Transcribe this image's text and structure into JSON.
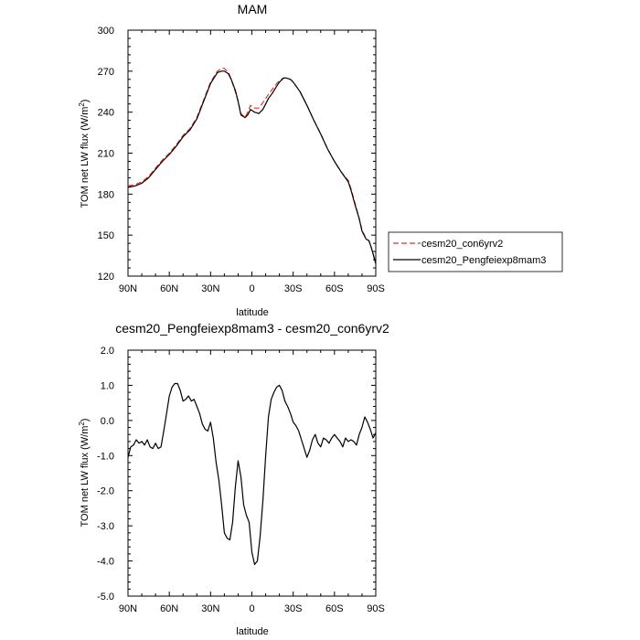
{
  "chart_data": [
    {
      "type": "line",
      "title": "MAM",
      "xlabel": "latitude",
      "ylabel": "TOM net LW flux (W/m",
      "ylabel_sup": "2",
      "ylabel_end": ")",
      "xlim": [
        90,
        -90
      ],
      "ylim": [
        120,
        300
      ],
      "xticks": [
        90,
        60,
        30,
        0,
        -30,
        -60,
        -90
      ],
      "xtick_labels": [
        "90N",
        "60N",
        "30N",
        "0",
        "30S",
        "60S",
        "90S"
      ],
      "yticks": [
        120,
        150,
        180,
        210,
        240,
        270,
        300
      ],
      "ytick_labels": [
        "120",
        "150",
        "180",
        "210",
        "240",
        "270",
        "300"
      ],
      "legend_position": "right-outside",
      "series": [
        {
          "name": "cesm20_con6yrv2",
          "color": "#e8302a",
          "dash": "dashed",
          "x": [
            90,
            85,
            80,
            75,
            70,
            65,
            60,
            55,
            50,
            45,
            40,
            35,
            30,
            25,
            22,
            20,
            17,
            15,
            12,
            10,
            8,
            5,
            3,
            1,
            -2,
            -5,
            -8,
            -10,
            -12,
            -15,
            -18,
            -20,
            -23,
            -25,
            -28,
            -30,
            -35,
            -40,
            -45,
            -50,
            -55,
            -60,
            -65,
            -70,
            -72,
            -75,
            -78,
            -80,
            -83,
            -85,
            -87,
            -90
          ],
          "y": [
            186,
            187,
            189,
            193,
            199,
            205,
            210,
            216,
            223,
            228,
            236,
            249,
            262,
            270,
            272,
            272,
            269,
            264,
            255,
            248,
            239,
            236,
            240,
            245,
            243,
            243,
            247,
            250,
            253,
            257,
            261,
            263,
            265,
            265,
            264,
            262,
            255,
            245,
            234,
            224,
            213,
            204,
            196,
            190,
            184,
            173,
            162,
            154,
            147,
            146,
            140,
            130
          ]
        },
        {
          "name": "cesm20_Pengfeiexp8mam3",
          "color": "#000000",
          "dash": "solid",
          "x": [
            90,
            85,
            80,
            75,
            70,
            65,
            60,
            55,
            50,
            45,
            40,
            35,
            30,
            25,
            22,
            20,
            17,
            15,
            12,
            10,
            8,
            5,
            3,
            1,
            -2,
            -5,
            -8,
            -10,
            -12,
            -15,
            -18,
            -20,
            -23,
            -25,
            -28,
            -30,
            -35,
            -40,
            -45,
            -50,
            -55,
            -60,
            -65,
            -70,
            -72,
            -75,
            -78,
            -80,
            -83,
            -85,
            -87,
            -90
          ],
          "y": [
            185,
            186,
            188,
            192,
            198,
            204,
            209,
            215,
            222,
            227,
            235,
            248,
            261,
            269,
            270,
            270,
            268,
            264,
            256,
            248,
            238,
            236,
            238,
            242,
            240,
            239,
            242,
            246,
            250,
            254,
            259,
            262,
            265,
            265,
            264,
            262,
            255,
            245,
            234,
            224,
            213,
            204,
            196,
            189,
            183,
            172,
            162,
            153,
            147,
            146,
            140,
            129
          ]
        }
      ]
    },
    {
      "type": "line",
      "title": "cesm20_Pengfeiexp8mam3 - cesm20_con6yrv2",
      "xlabel": "latitude",
      "ylabel": "TOM net LW flux (W/m",
      "ylabel_sup": "2",
      "ylabel_end": ")",
      "xlim": [
        90,
        -90
      ],
      "ylim": [
        -5,
        2
      ],
      "xticks": [
        90,
        60,
        30,
        0,
        -30,
        -60,
        -90
      ],
      "xtick_labels": [
        "90N",
        "60N",
        "30N",
        "0",
        "30S",
        "60S",
        "90S"
      ],
      "yticks": [
        -5,
        -4,
        -3,
        -2,
        -1,
        0,
        1,
        2
      ],
      "ytick_labels": [
        "-5.0",
        "-4.0",
        "-3.0",
        "-2.0",
        "-1.0",
        "0.0",
        "1.0",
        "2.0"
      ],
      "series": [
        {
          "name": "",
          "color": "#000000",
          "dash": "solid",
          "x": [
            90,
            88,
            86,
            84,
            82,
            80,
            78,
            76,
            74,
            72,
            70,
            68,
            66,
            64,
            62,
            60,
            58,
            56,
            54,
            52,
            50,
            48,
            46,
            44,
            42,
            40,
            38,
            36,
            34,
            32,
            30,
            28,
            26,
            24,
            22,
            20,
            18,
            16,
            14,
            12,
            10,
            8,
            6,
            4,
            2,
            0,
            -2,
            -4,
            -6,
            -8,
            -10,
            -12,
            -14,
            -16,
            -18,
            -20,
            -22,
            -24,
            -26,
            -28,
            -30,
            -32,
            -34,
            -36,
            -38,
            -40,
            -42,
            -44,
            -46,
            -48,
            -50,
            -52,
            -54,
            -56,
            -58,
            -60,
            -62,
            -64,
            -66,
            -68,
            -70,
            -72,
            -74,
            -76,
            -78,
            -80,
            -82,
            -84,
            -86,
            -88,
            -90
          ],
          "y": [
            -1.05,
            -0.75,
            -0.7,
            -0.55,
            -0.65,
            -0.6,
            -0.7,
            -0.55,
            -0.75,
            -0.8,
            -0.65,
            -0.8,
            -0.75,
            -0.3,
            0.2,
            0.7,
            0.95,
            1.05,
            1.05,
            0.85,
            0.55,
            0.6,
            0.7,
            0.55,
            0.6,
            0.4,
            0.2,
            -0.1,
            -0.25,
            -0.3,
            -0.05,
            -0.5,
            -1.2,
            -1.7,
            -2.4,
            -3.2,
            -3.35,
            -3.4,
            -2.9,
            -1.9,
            -1.15,
            -1.6,
            -2.4,
            -2.7,
            -2.9,
            -3.75,
            -4.1,
            -4.0,
            -3.3,
            -2.3,
            -1.0,
            0.1,
            0.6,
            0.8,
            0.95,
            1.0,
            0.85,
            0.55,
            0.4,
            0.2,
            -0.05,
            -0.15,
            -0.3,
            -0.55,
            -0.8,
            -1.05,
            -0.85,
            -0.55,
            -0.4,
            -0.65,
            -0.75,
            -0.5,
            -0.55,
            -0.65,
            -0.5,
            -0.4,
            -0.5,
            -0.6,
            -0.75,
            -0.5,
            -0.6,
            -0.55,
            -0.6,
            -0.7,
            -0.4,
            -0.2,
            0.1,
            -0.05,
            -0.25,
            -0.5,
            -0.35
          ]
        }
      ]
    }
  ]
}
